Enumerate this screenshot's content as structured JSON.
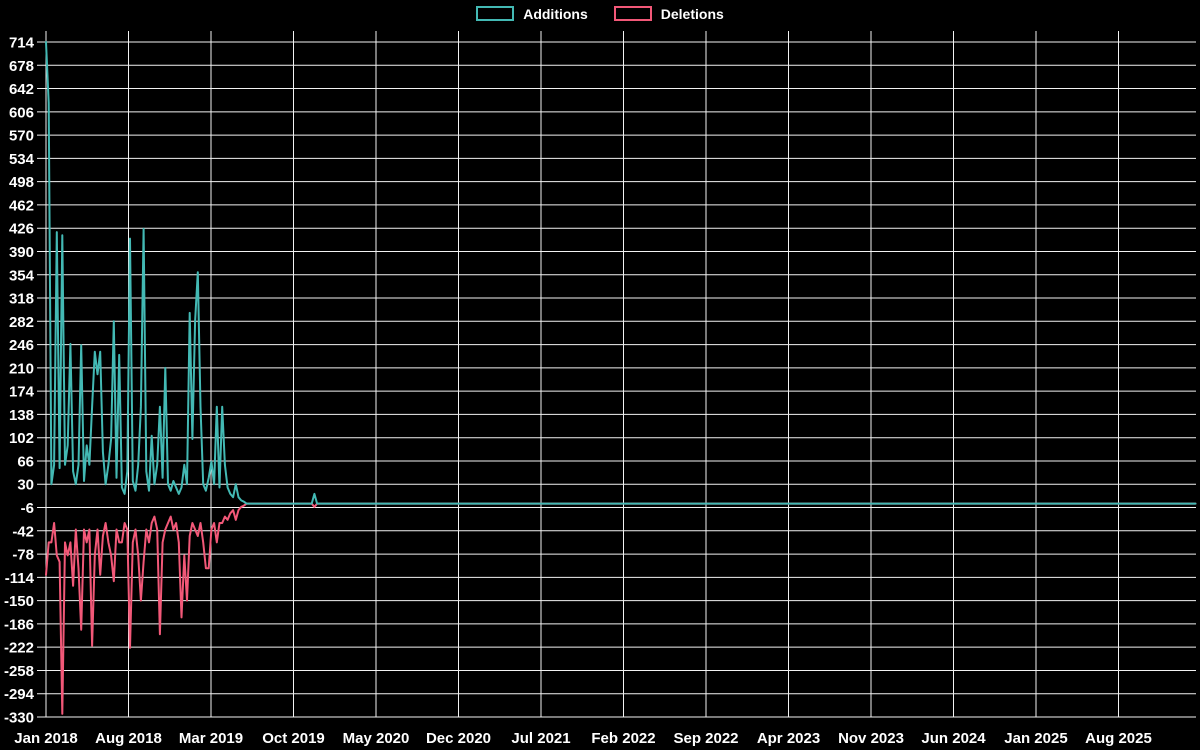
{
  "chart_data": {
    "type": "line",
    "title": "",
    "background_color": "#000000",
    "grid": true,
    "grid_color": "#f2f2f2",
    "label_color": "#ffffff",
    "legend_position": "top-center",
    "x_axis": {
      "granularity": "weekly",
      "tick_labels": [
        "Jan 2018",
        "Aug 2018",
        "Mar 2019",
        "Oct 2019",
        "May 2020",
        "Dec 2020",
        "Jul 2021",
        "Feb 2022",
        "Sep 2022",
        "Apr 2023",
        "Nov 2023",
        "Jun 2024",
        "Jan 2025",
        "Aug 2025"
      ],
      "weeks_per_tick": 30.44,
      "total_weeks": 424
    },
    "y_axis": {
      "min": -330,
      "max": 714,
      "tick_step": 36,
      "ticks": [
        714,
        678,
        642,
        606,
        570,
        534,
        498,
        462,
        426,
        390,
        354,
        318,
        282,
        246,
        210,
        174,
        138,
        102,
        66,
        30,
        -6,
        -42,
        -78,
        -114,
        -150,
        -186,
        -222,
        -258,
        -294,
        -330
      ]
    },
    "series": [
      {
        "name": "Additions",
        "color": "#43b9b4",
        "default_value": 0,
        "points": [
          [
            0,
            714
          ],
          [
            1,
            620
          ],
          [
            2,
            30
          ],
          [
            3,
            60
          ],
          [
            4,
            420
          ],
          [
            5,
            55
          ],
          [
            6,
            415
          ],
          [
            7,
            60
          ],
          [
            8,
            90
          ],
          [
            9,
            247
          ],
          [
            10,
            50
          ],
          [
            11,
            30
          ],
          [
            12,
            60
          ],
          [
            13,
            245
          ],
          [
            14,
            35
          ],
          [
            15,
            90
          ],
          [
            16,
            60
          ],
          [
            17,
            150
          ],
          [
            18,
            235
          ],
          [
            19,
            200
          ],
          [
            20,
            235
          ],
          [
            21,
            80
          ],
          [
            22,
            30
          ],
          [
            23,
            60
          ],
          [
            24,
            100
          ],
          [
            25,
            282
          ],
          [
            26,
            40
          ],
          [
            27,
            230
          ],
          [
            28,
            25
          ],
          [
            29,
            15
          ],
          [
            30,
            50
          ],
          [
            31,
            410
          ],
          [
            32,
            35
          ],
          [
            33,
            20
          ],
          [
            34,
            60
          ],
          [
            35,
            150
          ],
          [
            36,
            425
          ],
          [
            37,
            50
          ],
          [
            38,
            20
          ],
          [
            39,
            105
          ],
          [
            40,
            30
          ],
          [
            41,
            60
          ],
          [
            42,
            150
          ],
          [
            43,
            40
          ],
          [
            44,
            210
          ],
          [
            45,
            30
          ],
          [
            46,
            20
          ],
          [
            47,
            35
          ],
          [
            48,
            25
          ],
          [
            49,
            15
          ],
          [
            50,
            25
          ],
          [
            51,
            60
          ],
          [
            52,
            30
          ],
          [
            53,
            295
          ],
          [
            54,
            100
          ],
          [
            55,
            282
          ],
          [
            56,
            358
          ],
          [
            57,
            150
          ],
          [
            58,
            30
          ],
          [
            59,
            20
          ],
          [
            60,
            40
          ],
          [
            61,
            65
          ],
          [
            62,
            30
          ],
          [
            63,
            150
          ],
          [
            64,
            25
          ],
          [
            65,
            150
          ],
          [
            66,
            60
          ],
          [
            67,
            25
          ],
          [
            68,
            15
          ],
          [
            69,
            10
          ],
          [
            70,
            30
          ],
          [
            71,
            10
          ],
          [
            72,
            5
          ],
          [
            73,
            3
          ],
          [
            74,
            0
          ],
          [
            98,
            0
          ],
          [
            99,
            15
          ],
          [
            100,
            0
          ]
        ]
      },
      {
        "name": "Deletions",
        "color": "#f25878",
        "default_value": 0,
        "points": [
          [
            0,
            -110
          ],
          [
            1,
            -60
          ],
          [
            2,
            -60
          ],
          [
            3,
            -30
          ],
          [
            4,
            -80
          ],
          [
            5,
            -90
          ],
          [
            6,
            -325
          ],
          [
            7,
            -60
          ],
          [
            8,
            -80
          ],
          [
            9,
            -60
          ],
          [
            10,
            -127
          ],
          [
            11,
            -40
          ],
          [
            12,
            -100
          ],
          [
            13,
            -195
          ],
          [
            14,
            -40
          ],
          [
            15,
            -60
          ],
          [
            16,
            -40
          ],
          [
            17,
            -220
          ],
          [
            18,
            -80
          ],
          [
            19,
            -40
          ],
          [
            20,
            -110
          ],
          [
            21,
            -50
          ],
          [
            22,
            -30
          ],
          [
            23,
            -60
          ],
          [
            24,
            -80
          ],
          [
            25,
            -120
          ],
          [
            26,
            -40
          ],
          [
            27,
            -60
          ],
          [
            28,
            -60
          ],
          [
            29,
            -30
          ],
          [
            30,
            -40
          ],
          [
            31,
            -223
          ],
          [
            32,
            -60
          ],
          [
            33,
            -40
          ],
          [
            34,
            -80
          ],
          [
            35,
            -150
          ],
          [
            36,
            -90
          ],
          [
            37,
            -40
          ],
          [
            38,
            -60
          ],
          [
            39,
            -30
          ],
          [
            40,
            -20
          ],
          [
            41,
            -40
          ],
          [
            42,
            -202
          ],
          [
            43,
            -60
          ],
          [
            44,
            -40
          ],
          [
            45,
            -30
          ],
          [
            46,
            -20
          ],
          [
            47,
            -40
          ],
          [
            48,
            -30
          ],
          [
            49,
            -60
          ],
          [
            50,
            -176
          ],
          [
            51,
            -80
          ],
          [
            52,
            -150
          ],
          [
            53,
            -50
          ],
          [
            54,
            -30
          ],
          [
            55,
            -40
          ],
          [
            56,
            -50
          ],
          [
            57,
            -30
          ],
          [
            58,
            -60
          ],
          [
            59,
            -100
          ],
          [
            60,
            -100
          ],
          [
            61,
            -40
          ],
          [
            62,
            -30
          ],
          [
            63,
            -60
          ],
          [
            64,
            -30
          ],
          [
            65,
            -30
          ],
          [
            66,
            -20
          ],
          [
            67,
            -25
          ],
          [
            68,
            -15
          ],
          [
            69,
            -10
          ],
          [
            70,
            -25
          ],
          [
            71,
            -10
          ],
          [
            72,
            -5
          ],
          [
            73,
            -3
          ],
          [
            74,
            0
          ],
          [
            98,
            0
          ],
          [
            99,
            -5
          ],
          [
            100,
            0
          ]
        ]
      }
    ]
  }
}
